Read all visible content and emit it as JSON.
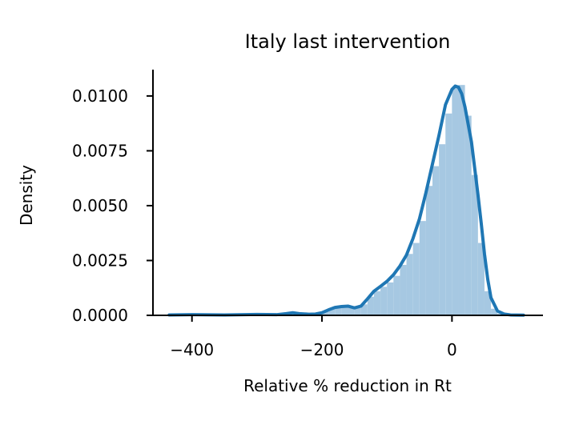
{
  "chart_data": {
    "type": "histogram+kde",
    "title": "Italy last intervention",
    "xlabel": "Relative % reduction in Rt",
    "ylabel": "Density",
    "xlim": [
      -460,
      140
    ],
    "ylim": [
      0,
      0.0112
    ],
    "xticks": [
      -400,
      -200,
      0
    ],
    "xtick_labels": [
      "−400",
      "−200",
      "0"
    ],
    "yticks": [
      0,
      0.0025,
      0.005,
      0.0075,
      0.01
    ],
    "ytick_labels": [
      "0.0000",
      "0.0025",
      "0.0050",
      "0.0075",
      "0.0100"
    ],
    "grid": false,
    "colors": {
      "kde": "#1f77b4",
      "hist": "#a6c8e2",
      "axis": "#000000"
    },
    "histogram": {
      "bin_width": 10,
      "bins": [
        {
          "x0": -440,
          "density": 2e-05
        },
        {
          "x0": -430,
          "density": 3e-05
        },
        {
          "x0": -420,
          "density": 3e-05
        },
        {
          "x0": -410,
          "density": 3e-05
        },
        {
          "x0": -400,
          "density": 3e-05
        },
        {
          "x0": -390,
          "density": 2e-05
        },
        {
          "x0": -380,
          "density": 2e-05
        },
        {
          "x0": -370,
          "density": 2e-05
        },
        {
          "x0": -360,
          "density": 3e-05
        },
        {
          "x0": -350,
          "density": 3e-05
        },
        {
          "x0": -340,
          "density": 3e-05
        },
        {
          "x0": -330,
          "density": 3e-05
        },
        {
          "x0": -320,
          "density": 3e-05
        },
        {
          "x0": -310,
          "density": 4e-05
        },
        {
          "x0": -300,
          "density": 4e-05
        },
        {
          "x0": -290,
          "density": 4e-05
        },
        {
          "x0": -280,
          "density": 3e-05
        },
        {
          "x0": -270,
          "density": 4e-05
        },
        {
          "x0": -260,
          "density": 8e-05
        },
        {
          "x0": -250,
          "density": 0.00012
        },
        {
          "x0": -240,
          "density": 8e-05
        },
        {
          "x0": -230,
          "density": 5e-05
        },
        {
          "x0": -220,
          "density": 6e-05
        },
        {
          "x0": -210,
          "density": 0.0001
        },
        {
          "x0": -200,
          "density": 0.00018
        },
        {
          "x0": -190,
          "density": 0.0003
        },
        {
          "x0": -180,
          "density": 0.00036
        },
        {
          "x0": -170,
          "density": 0.0004
        },
        {
          "x0": -160,
          "density": 0.00038
        },
        {
          "x0": -150,
          "density": 0.00034
        },
        {
          "x0": -140,
          "density": 0.0005
        },
        {
          "x0": -130,
          "density": 0.00085
        },
        {
          "x0": -120,
          "density": 0.0011
        },
        {
          "x0": -110,
          "density": 0.0013
        },
        {
          "x0": -100,
          "density": 0.0015
        },
        {
          "x0": -90,
          "density": 0.0018
        },
        {
          "x0": -80,
          "density": 0.0023
        },
        {
          "x0": -70,
          "density": 0.0028
        },
        {
          "x0": -60,
          "density": 0.0033
        },
        {
          "x0": -50,
          "density": 0.0043
        },
        {
          "x0": -40,
          "density": 0.0059
        },
        {
          "x0": -30,
          "density": 0.0068
        },
        {
          "x0": -20,
          "density": 0.0078
        },
        {
          "x0": -10,
          "density": 0.0092
        },
        {
          "x0": 0,
          "density": 0.0104
        },
        {
          "x0": 10,
          "density": 0.0105
        },
        {
          "x0": 20,
          "density": 0.0091
        },
        {
          "x0": 30,
          "density": 0.0064
        },
        {
          "x0": 40,
          "density": 0.0033
        },
        {
          "x0": 50,
          "density": 0.0011
        },
        {
          "x0": 60,
          "density": 0.0003
        },
        {
          "x0": 70,
          "density": 8e-05
        },
        {
          "x0": 80,
          "density": 3e-05
        },
        {
          "x0": 90,
          "density": 2e-05
        },
        {
          "x0": 100,
          "density": 1e-05
        }
      ]
    },
    "kde": {
      "x": [
        -435,
        -400,
        -350,
        -300,
        -270,
        -255,
        -245,
        -235,
        -220,
        -210,
        -200,
        -190,
        -180,
        -170,
        -160,
        -150,
        -140,
        -130,
        -120,
        -110,
        -100,
        -90,
        -80,
        -70,
        -60,
        -50,
        -40,
        -30,
        -20,
        -10,
        0,
        5,
        10,
        15,
        20,
        30,
        40,
        45,
        50,
        55,
        60,
        70,
        80,
        90,
        110
      ],
      "y": [
        2e-05,
        3e-05,
        2e-05,
        4e-05,
        3e-05,
        8e-05,
        0.00012,
        8e-05,
        5e-05,
        6e-05,
        0.00012,
        0.00025,
        0.00036,
        0.0004,
        0.00042,
        0.00034,
        0.00042,
        0.00075,
        0.0011,
        0.00132,
        0.00155,
        0.00185,
        0.00225,
        0.00275,
        0.0035,
        0.0044,
        0.0056,
        0.0069,
        0.0082,
        0.0096,
        0.0103,
        0.01045,
        0.0104,
        0.0101,
        0.0095,
        0.0079,
        0.0055,
        0.0042,
        0.0028,
        0.00165,
        0.0008,
        0.0002,
        6e-05,
        2e-05,
        1e-05
      ]
    }
  }
}
